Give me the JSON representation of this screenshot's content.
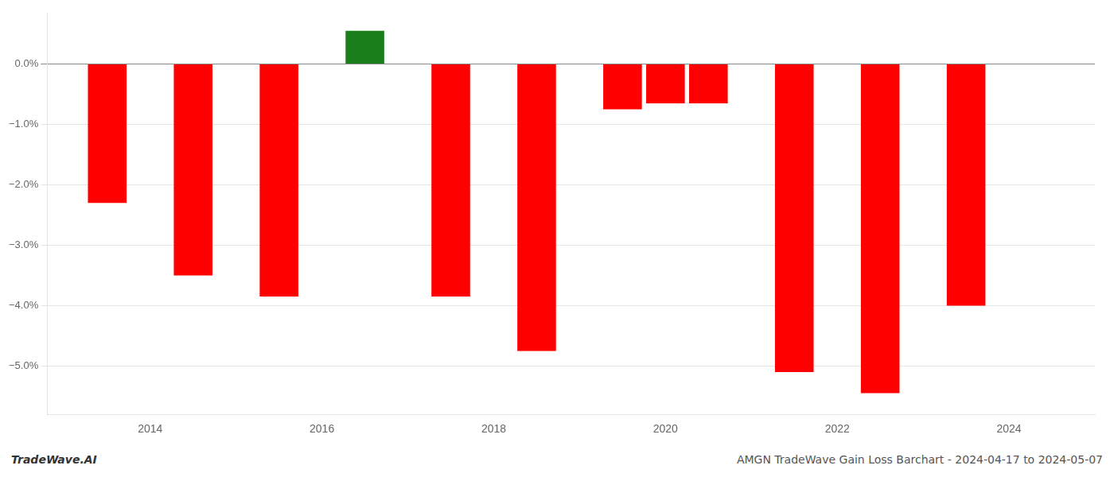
{
  "chart_data": {
    "type": "bar",
    "x": [
      2013.5,
      2014.5,
      2015.5,
      2016.5,
      2017.5,
      2018.5,
      2019.5,
      2020.0,
      2020.5,
      2021.5,
      2022.5,
      2023.5
    ],
    "values": [
      -2.3,
      -3.5,
      -3.85,
      0.55,
      -3.85,
      -4.75,
      -0.75,
      -0.65,
      -0.65,
      -5.1,
      -5.45,
      -4.0
    ],
    "colors": [
      "#ff0000",
      "#ff0000",
      "#ff0000",
      "#1a7f1a",
      "#ff0000",
      "#ff0000",
      "#ff0000",
      "#ff0000",
      "#ff0000",
      "#ff0000",
      "#ff0000",
      "#ff0000"
    ],
    "xlim": [
      2012.8,
      2025.0
    ],
    "xticks": [
      2014,
      2016,
      2018,
      2020,
      2022,
      2024
    ],
    "ylim": [
      -5.8,
      0.85
    ],
    "yticks": [
      {
        "value": -5,
        "label": "−5.0%"
      },
      {
        "value": -4,
        "label": "−4.0%"
      },
      {
        "value": -3,
        "label": "−3.0%"
      },
      {
        "value": -2,
        "label": "−2.0%"
      },
      {
        "value": -1,
        "label": "−1.0%"
      },
      {
        "value": 0,
        "label": "0.0%"
      }
    ],
    "grid": true,
    "annotations": [
      "TradeWave.AI",
      "AMGN TradeWave Gain Loss Barchart - 2024-04-17 to 2024-05-07"
    ]
  }
}
